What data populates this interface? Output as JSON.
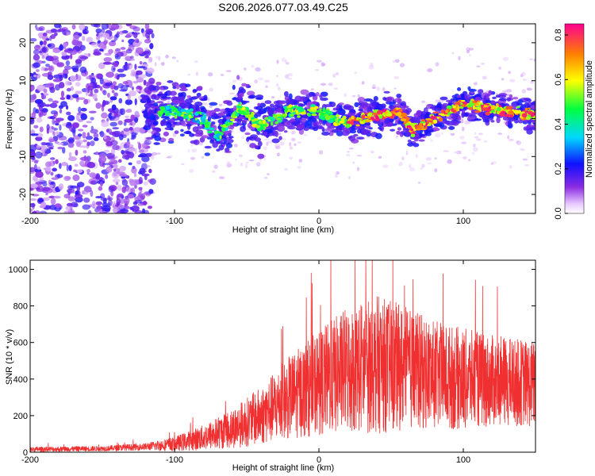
{
  "title": "S206.2026.077.03.49.C25",
  "colors": {
    "snr_line": "#f03030",
    "frame": "#000000"
  },
  "chart_data": [
    {
      "type": "heatmap",
      "id": "spectrogram",
      "xlabel": "Height of straight line (km)",
      "ylabel": "Frequency (Hz)",
      "xlim": [
        -200,
        150
      ],
      "ylim": [
        -25,
        25
      ],
      "xticks": [
        -200,
        -100,
        0,
        100
      ],
      "yticks": [
        -20,
        -10,
        0,
        10,
        20
      ],
      "colorbar": {
        "label": "Normalized spectral amplitude",
        "range": [
          0,
          0.85
        ],
        "ticks": [
          0.0,
          0.2,
          0.4,
          0.6,
          0.8
        ]
      },
      "ridge": {
        "description_points": [
          [
            -120,
            2
          ],
          [
            -100,
            2
          ],
          [
            -80,
            0
          ],
          [
            -70,
            -5
          ],
          [
            -55,
            3
          ],
          [
            -40,
            -2
          ],
          [
            -20,
            2
          ],
          [
            0,
            2
          ],
          [
            10,
            0
          ],
          [
            20,
            -1
          ],
          [
            40,
            1
          ],
          [
            55,
            2
          ],
          [
            65,
            -3
          ],
          [
            80,
            0
          ],
          [
            100,
            4
          ],
          [
            115,
            3
          ],
          [
            130,
            2
          ],
          [
            150,
            1
          ]
        ],
        "peak_amplitude": 0.85
      }
    },
    {
      "type": "line",
      "id": "snr",
      "xlabel": "Height of straight line (km)",
      "ylabel": "SNR (10 * v/v)",
      "xlim": [
        -200,
        150
      ],
      "ylim": [
        0,
        1050
      ],
      "xticks": [
        -200,
        -100,
        0,
        100
      ],
      "yticks": [
        0,
        200,
        400,
        600,
        800,
        1000
      ],
      "series": [
        {
          "name": "SNR",
          "envelope_x": [
            -200,
            -150,
            -120,
            -100,
            -80,
            -60,
            -40,
            -20,
            0,
            20,
            40,
            60,
            80,
            100,
            120,
            140,
            150
          ],
          "envelope_mean": [
            15,
            20,
            30,
            45,
            80,
            130,
            200,
            300,
            380,
            450,
            480,
            460,
            420,
            400,
            390,
            380,
            370
          ],
          "envelope_spread": [
            15,
            15,
            20,
            40,
            70,
            110,
            160,
            230,
            290,
            350,
            380,
            340,
            300,
            280,
            250,
            240,
            240
          ]
        }
      ]
    }
  ]
}
